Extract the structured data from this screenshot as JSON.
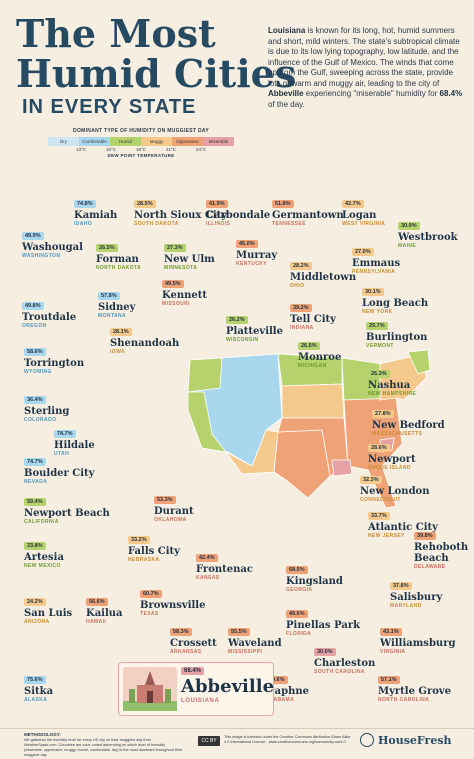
{
  "header": {
    "title_line1": "The Most",
    "title_line2": "Humid Cities",
    "title_line3": "IN EVERY STATE"
  },
  "intro": {
    "part1": "Louisiana",
    "part2": " is known for its long, hot, humid summers and short, mild winters. The state's subtropical climate is due to its low lying topography, low latitude, and the influence of the Gulf of Mexico. The winds that come up from the Gulf, sweeping across the state, provide lots of warm and muggy air, leading to the city of ",
    "part3": "Abbeville",
    "part4": " experiencing \"miserable\" humidity for ",
    "part5": "68.4%",
    "part6": " of the day."
  },
  "legend": {
    "title": "DOMINANT TYPE OF HUMIDITY ON MUGGIEST DAY",
    "categories": [
      {
        "label": "Dry",
        "color": "#cfe6f2"
      },
      {
        "label": "Comfortable",
        "color": "#a9d7ee"
      },
      {
        "label": "Humid",
        "color": "#b6d26d"
      },
      {
        "label": "Muggy",
        "color": "#f5c98b"
      },
      {
        "label": "Oppressive",
        "color": "#f0a277"
      },
      {
        "label": "Miserable",
        "color": "#e6a2a4"
      }
    ],
    "ticks": [
      "13°C",
      "16°C",
      "18°C",
      "21°C",
      "24°C"
    ],
    "subtitle": "DEW POINT TEMPERATURE"
  },
  "cities": [
    {
      "pct": "74.8%",
      "name": "Kamiah",
      "state": "IDAHO",
      "color": "#a9d7ee"
    },
    {
      "pct": "28.5%",
      "name": "North Sioux City",
      "state": "SOUTH DAKOTA",
      "color": "#f5c98b"
    },
    {
      "pct": "41.9%",
      "name": "Carbondale",
      "state": "ILLINOIS",
      "color": "#f0a277"
    },
    {
      "pct": "51.8%",
      "name": "Germantown",
      "state": "TENNESSEE",
      "color": "#f0a277"
    },
    {
      "pct": "42.7%",
      "name": "Logan",
      "state": "WEST VIRGINIA",
      "color": "#f5c98b"
    },
    {
      "pct": "30.9%",
      "name": "Westbrook",
      "state": "MAINE",
      "color": "#b6d26d"
    },
    {
      "pct": "49.9%",
      "name": "Washougal",
      "state": "WASHINGTON",
      "color": "#a9d7ee"
    },
    {
      "pct": "26.5%",
      "name": "Forman",
      "state": "NORTH DAKOTA",
      "color": "#b6d26d"
    },
    {
      "pct": "27.3%",
      "name": "New Ulm",
      "state": "MINNESOTA",
      "color": "#b6d26d"
    },
    {
      "pct": "45.0%",
      "name": "Murray",
      "state": "KENTUCKY",
      "color": "#f0a277"
    },
    {
      "pct": "27.0%",
      "name": "Emmaus",
      "state": "PENNSYLVANIA",
      "color": "#f5c98b"
    },
    {
      "pct": "28.2%",
      "name": "Middletown",
      "state": "OHIO",
      "color": "#f5c98b"
    },
    {
      "pct": "49.5%",
      "name": "Kennett",
      "state": "MISSOURI",
      "color": "#f0a277"
    },
    {
      "pct": "57.8%",
      "name": "Sidney",
      "state": "MONTANA",
      "color": "#a9d7ee"
    },
    {
      "pct": "49.8%",
      "name": "Troutdale",
      "state": "OREGON",
      "color": "#a9d7ee"
    },
    {
      "pct": "30.1%",
      "name": "Long Beach",
      "state": "NEW YORK",
      "color": "#f5c98b"
    },
    {
      "pct": "39.2%",
      "name": "Tell City",
      "state": "INDIANA",
      "color": "#f0a277"
    },
    {
      "pct": "26.2%",
      "name": "Platteville",
      "state": "WISCONSIN",
      "color": "#b6d26d"
    },
    {
      "pct": "29.7%",
      "name": "Burlington",
      "state": "VERMONT",
      "color": "#b6d26d"
    },
    {
      "pct": "28.1%",
      "name": "Shenandoah",
      "state": "IOWA",
      "color": "#f5c98b"
    },
    {
      "pct": "58.6%",
      "name": "Torrington",
      "state": "WYOMING",
      "color": "#a9d7ee"
    },
    {
      "pct": "26.5%",
      "name": "Monroe",
      "state": "MICHIGAN",
      "color": "#b6d26d"
    },
    {
      "pct": "26.3%",
      "name": "Nashua",
      "state": "NEW HAMPSHIRE",
      "color": "#b6d26d"
    },
    {
      "pct": "36.4%",
      "name": "Sterling",
      "state": "COLORADO",
      "color": "#a9d7ee"
    },
    {
      "pct": "27.8%",
      "name": "New Bedford",
      "state": "MASSACHUSETTS",
      "color": "#f5c98b"
    },
    {
      "pct": "74.7%",
      "name": "Hildale",
      "state": "UTAH",
      "color": "#a9d7ee"
    },
    {
      "pct": "28.6%",
      "name": "Newport",
      "state": "RHODE ISLAND",
      "color": "#f5c98b"
    },
    {
      "pct": "74.7%",
      "name": "Boulder City",
      "state": "NEVADA",
      "color": "#a9d7ee"
    },
    {
      "pct": "32.3%",
      "name": "New London",
      "state": "CONNECTICUT",
      "color": "#f5c98b"
    },
    {
      "pct": "59.4%",
      "name": "Newport Beach",
      "state": "CALIFORNIA",
      "color": "#b6d26d"
    },
    {
      "pct": "53.3%",
      "name": "Durant",
      "state": "OKLAHOMA",
      "color": "#f0a277"
    },
    {
      "pct": "33.7%",
      "name": "Atlantic City",
      "state": "NEW JERSEY",
      "color": "#f5c98b"
    },
    {
      "pct": "39.8%",
      "name": "Rehoboth Beach",
      "state": "DELAWARE",
      "color": "#f0a277"
    },
    {
      "pct": "33.8%",
      "name": "Artesia",
      "state": "NEW MEXICO",
      "color": "#b6d26d"
    },
    {
      "pct": "33.2%",
      "name": "Falls City",
      "state": "NEBRASKA",
      "color": "#f5c98b"
    },
    {
      "pct": "42.4%",
      "name": "Frontenac",
      "state": "KANSAS",
      "color": "#f0a277"
    },
    {
      "pct": "68.5%",
      "name": "Kingsland",
      "state": "GEORGIA",
      "color": "#f0a277"
    },
    {
      "pct": "37.8%",
      "name": "Salisbury",
      "state": "MARYLAND",
      "color": "#f5c98b"
    },
    {
      "pct": "60.7%",
      "name": "Brownsville",
      "state": "TEXAS",
      "color": "#f0a277"
    },
    {
      "pct": "24.2%",
      "name": "San Luis",
      "state": "ARIZONA",
      "color": "#f5c98b"
    },
    {
      "pct": "56.6%",
      "name": "Kailua",
      "state": "HAWAII",
      "color": "#f0a277"
    },
    {
      "pct": "58.3%",
      "name": "Crossett",
      "state": "ARKANSAS",
      "color": "#f0a277"
    },
    {
      "pct": "55.5%",
      "name": "Waveland",
      "state": "MISSISSIPPI",
      "color": "#f0a277"
    },
    {
      "pct": "49.6%",
      "name": "Pinellas Park",
      "state": "FLORIDA",
      "color": "#f0a277"
    },
    {
      "pct": "43.1%",
      "name": "Williamsburg",
      "state": "VIRGINIA",
      "color": "#f0a277"
    },
    {
      "pct": "30.0%",
      "name": "Charleston",
      "state": "SOUTH CAROLINA",
      "color": "#e6a2a4"
    },
    {
      "pct": "75.6%",
      "name": "Sitka",
      "state": "ALASKA",
      "color": "#a9d7ee"
    },
    {
      "pct": "59.6%",
      "name": "Daphne",
      "state": "ALABAMA",
      "color": "#f0a277"
    },
    {
      "pct": "57.1%",
      "name": "Myrtle Grove",
      "state": "NORTH CAROLINA",
      "color": "#f0a277"
    }
  ],
  "highlight": {
    "pct": "68.4%",
    "name": "Abbeville",
    "state": "LOUISIANA",
    "color": "#e6a2a4"
  },
  "footer": {
    "methodology_title": "METHODOLOGY:",
    "methodology": "We gathered the humidity level for every US city on their muggiest day from WeatherSpark.com. Countries are color coded depending on which level of humidity (miserable, oppressive, muggy, humid, comfortable, dry) is the most dominant throughout their muggiest day.",
    "cc_label": "CC BY",
    "license": "This image is licensed under the Creative Commons Attribution-Share Alike 4.0 International License - www.creativecommons.org/licenses/by-sa/4.0",
    "brand": "HouseFresh"
  }
}
